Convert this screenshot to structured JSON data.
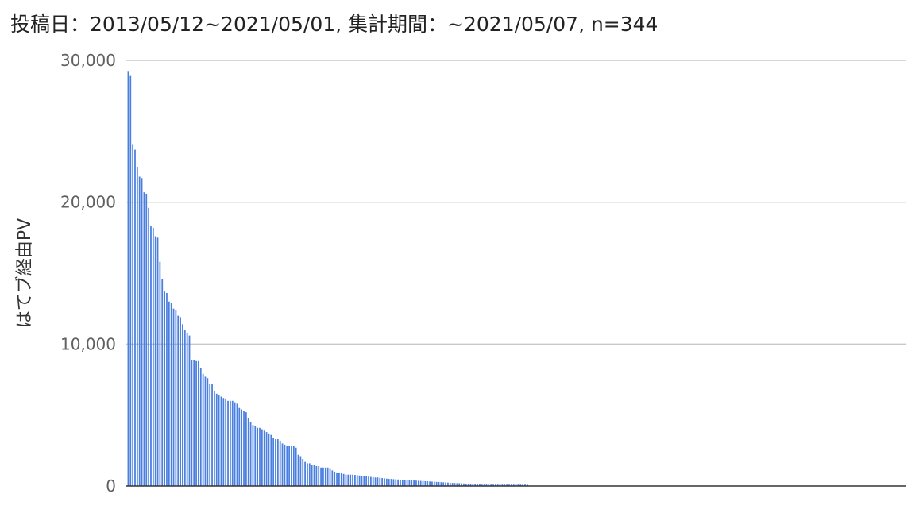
{
  "chart_data": {
    "type": "bar",
    "title": "投稿日：2013/05/12~2021/05/01, 集計期間：~2021/05/07, n=344",
    "xlabel": "",
    "ylabel": "はてブ経由PV",
    "ylim": [
      0,
      30000
    ],
    "yticks": [
      0,
      10000,
      20000,
      30000
    ],
    "ytick_labels": [
      "0",
      "10,000",
      "20,000",
      "30,000"
    ],
    "grid": true,
    "bar_color": "#4a7fe0",
    "n_categories": 344,
    "values": [
      29200,
      28900,
      24100,
      23700,
      22500,
      21800,
      21700,
      20700,
      20600,
      19600,
      18300,
      18200,
      17600,
      17500,
      15800,
      14600,
      13700,
      13600,
      13000,
      12900,
      12500,
      12400,
      12000,
      11900,
      11400,
      11000,
      10800,
      10600,
      8900,
      8900,
      8800,
      8800,
      8300,
      7900,
      7700,
      7600,
      7200,
      7200,
      6700,
      6500,
      6400,
      6300,
      6200,
      6100,
      6000,
      6000,
      6000,
      5900,
      5800,
      5500,
      5400,
      5300,
      5200,
      4800,
      4500,
      4300,
      4200,
      4100,
      4100,
      4000,
      3900,
      3800,
      3700,
      3600,
      3400,
      3300,
      3300,
      3200,
      3000,
      2900,
      2800,
      2800,
      2800,
      2800,
      2700,
      2200,
      2100,
      1900,
      1700,
      1600,
      1600,
      1500,
      1500,
      1400,
      1400,
      1300,
      1300,
      1300,
      1300,
      1200,
      1100,
      1000,
      900,
      900,
      900,
      850,
      800,
      800,
      800,
      800,
      780,
      760,
      740,
      720,
      700,
      680,
      660,
      640,
      620,
      600,
      600,
      580,
      560,
      540,
      520,
      500,
      500,
      480,
      470,
      460,
      450,
      440,
      430,
      420,
      410,
      400,
      390,
      380,
      370,
      360,
      350,
      340,
      330,
      320,
      310,
      300,
      290,
      280,
      270,
      260,
      250,
      240,
      230,
      220,
      210,
      200,
      200,
      190,
      180,
      170,
      160,
      150,
      140,
      130,
      120,
      110,
      100,
      100,
      100,
      100,
      100,
      100,
      100,
      100,
      100,
      100,
      100,
      100,
      100,
      100,
      100,
      100,
      100,
      100,
      100,
      100,
      100,
      0,
      0,
      0,
      0,
      0,
      0,
      0,
      0,
      0,
      0,
      0,
      0,
      0,
      0,
      0,
      0,
      0,
      0,
      0,
      0,
      0,
      0,
      0,
      0,
      0,
      0,
      0,
      0,
      0,
      0,
      0,
      0,
      0,
      0,
      0,
      0,
      0,
      0,
      0,
      0,
      0,
      0,
      0,
      0,
      0,
      0,
      0,
      0,
      0,
      0,
      0,
      0,
      0,
      0,
      0,
      0,
      0,
      0,
      0,
      0,
      0,
      0,
      0,
      0,
      0,
      0,
      0,
      0,
      0,
      0,
      0,
      0,
      0,
      0,
      0,
      0,
      0,
      0,
      0,
      0,
      0,
      0,
      0,
      0,
      0,
      0,
      0,
      0,
      0,
      0,
      0,
      0,
      0,
      0,
      0,
      0,
      0,
      0,
      0,
      0,
      0,
      0,
      0,
      0,
      0,
      0,
      0,
      0,
      0,
      0,
      0,
      0,
      0,
      0,
      0,
      0,
      0,
      0,
      0,
      0,
      0,
      0,
      0,
      0,
      0,
      0,
      0,
      0,
      0,
      0,
      0,
      0,
      0,
      0,
      0,
      0,
      0,
      0,
      0,
      0,
      0,
      0,
      0,
      0,
      0,
      0,
      0,
      0,
      0,
      0,
      0,
      0,
      0,
      0,
      0,
      0,
      0,
      0,
      0,
      0,
      0,
      0,
      0,
      0,
      0,
      0,
      0,
      0,
      0,
      0,
      0,
      0,
      0,
      0,
      0,
      0,
      0,
      0,
      0,
      0,
      0,
      0,
      0,
      0,
      0,
      0,
      0,
      0,
      0,
      0,
      0,
      0,
      0,
      0,
      0,
      0,
      0,
      0,
      0,
      0,
      0,
      0
    ]
  }
}
